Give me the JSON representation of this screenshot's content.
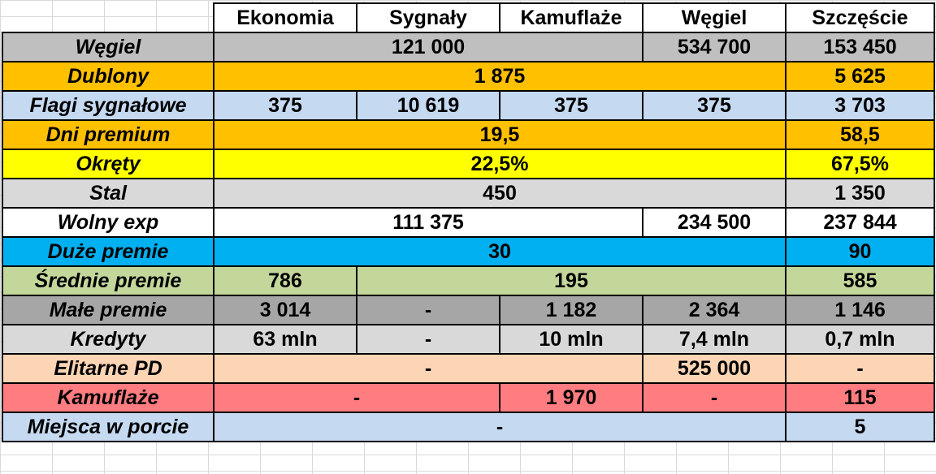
{
  "columns": [
    "Ekonomia",
    "Sygnały",
    "Kamuflaże",
    "Węgiel",
    "Szczęście"
  ],
  "rows": [
    {
      "label": "Węgiel",
      "color": "#bfbfbf",
      "cells": [
        {
          "value": "121 000",
          "span": 3
        },
        {
          "value": "534 700",
          "span": 1
        },
        {
          "value": "153 450",
          "span": 1
        }
      ]
    },
    {
      "label": "Dublony",
      "color": "#ffc000",
      "cells": [
        {
          "value": "1 875",
          "span": 4
        },
        {
          "value": "5 625",
          "span": 1
        }
      ]
    },
    {
      "label": "Flagi sygnałowe",
      "color": "#c5d9f1",
      "cells": [
        {
          "value": "375",
          "span": 1
        },
        {
          "value": "10 619",
          "span": 1
        },
        {
          "value": "375",
          "span": 1
        },
        {
          "value": "375",
          "span": 1
        },
        {
          "value": "3 703",
          "span": 1
        }
      ]
    },
    {
      "label": "Dni premium",
      "color": "#ffc000",
      "cells": [
        {
          "value": "19,5",
          "span": 4
        },
        {
          "value": "58,5",
          "span": 1
        }
      ]
    },
    {
      "label": "Okręty",
      "color": "#ffff00",
      "cells": [
        {
          "value": "22,5%",
          "span": 4
        },
        {
          "value": "67,5%",
          "span": 1
        }
      ]
    },
    {
      "label": "Stal",
      "color": "#d9d9d9",
      "cells": [
        {
          "value": "450",
          "span": 4
        },
        {
          "value": "1 350",
          "span": 1
        }
      ]
    },
    {
      "label": "Wolny exp",
      "color": "#ffffff",
      "cells": [
        {
          "value": "111 375",
          "span": 3
        },
        {
          "value": "234 500",
          "span": 1
        },
        {
          "value": "237 844",
          "span": 1
        }
      ]
    },
    {
      "label": "Duże premie",
      "color": "#00b0f0",
      "cells": [
        {
          "value": "30",
          "span": 4
        },
        {
          "value": "90",
          "span": 1
        }
      ]
    },
    {
      "label": "Średnie premie",
      "color": "#c4d79b",
      "cells": [
        {
          "value": "786",
          "span": 1
        },
        {
          "value": "195",
          "span": 3
        },
        {
          "value": "585",
          "span": 1
        }
      ]
    },
    {
      "label": "Małe premie",
      "color": "#a6a6a6",
      "cells": [
        {
          "value": "3 014",
          "span": 1
        },
        {
          "value": "-",
          "span": 1
        },
        {
          "value": "1 182",
          "span": 1
        },
        {
          "value": "2 364",
          "span": 1
        },
        {
          "value": "1 146",
          "span": 1
        }
      ]
    },
    {
      "label": "Kredyty",
      "color": "#d9d9d9",
      "cells": [
        {
          "value": "63 mln",
          "span": 1
        },
        {
          "value": "-",
          "span": 1
        },
        {
          "value": "10 mln",
          "span": 1
        },
        {
          "value": "7,4 mln",
          "span": 1
        },
        {
          "value": "0,7 mln",
          "span": 1
        }
      ]
    },
    {
      "label": "Elitarne PD",
      "color": "#fcd5b4",
      "cells": [
        {
          "value": "-",
          "span": 3
        },
        {
          "value": "525 000",
          "span": 1
        },
        {
          "value": "-",
          "span": 1
        }
      ]
    },
    {
      "label": "Kamuflaże",
      "color": "#ff7c80",
      "cells": [
        {
          "value": "-",
          "span": 2
        },
        {
          "value": "1 970",
          "span": 1
        },
        {
          "value": "-",
          "span": 1
        },
        {
          "value": "115",
          "span": 1
        }
      ]
    },
    {
      "label": "Miejsca w porcie",
      "color": "#c5d9f1",
      "cells": [
        {
          "value": "-",
          "span": 4
        },
        {
          "value": "5",
          "span": 1
        }
      ]
    }
  ]
}
